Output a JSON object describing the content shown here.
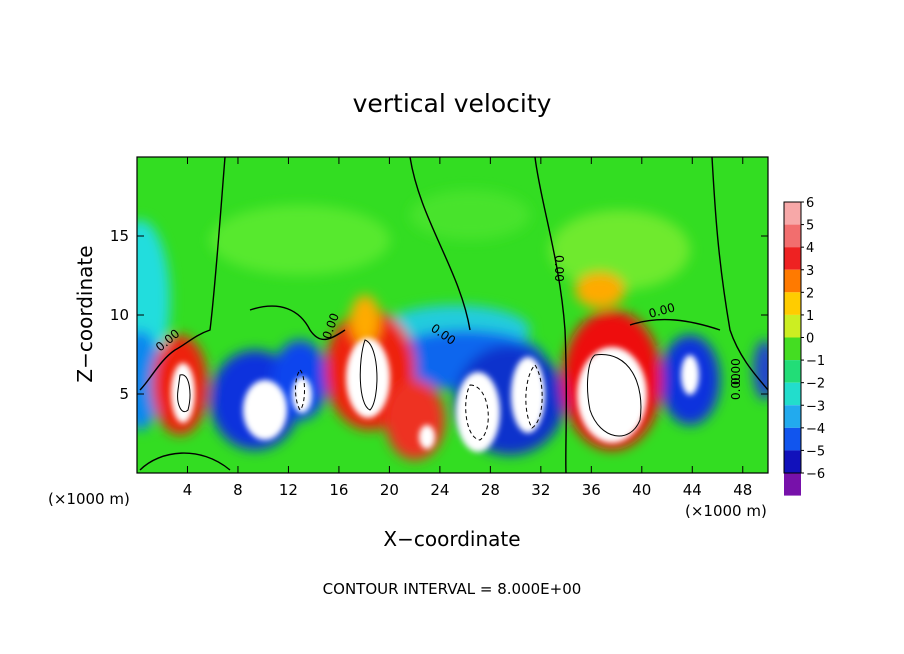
{
  "chart_data": {
    "type": "heatmap",
    "title": "vertical velocity",
    "xlabel": "X−coordinate",
    "ylabel": "Z−coordinate",
    "x_unit_left": "(×1000 m)",
    "x_unit_right": "(×1000 m)",
    "footer": "CONTOUR INTERVAL = 8.000E+00",
    "xlim": [
      0,
      50
    ],
    "ylim": [
      0,
      20
    ],
    "x_ticks": [
      4,
      8,
      12,
      16,
      20,
      24,
      28,
      32,
      36,
      40,
      44,
      48
    ],
    "y_ticks": [
      5,
      10,
      15
    ],
    "x_tick_labels": [
      "4",
      "8",
      "12",
      "16",
      "20",
      "24",
      "28",
      "32",
      "36",
      "40",
      "44",
      "48"
    ],
    "y_tick_labels": [
      "5",
      "10",
      "15"
    ],
    "colorbar": {
      "range": [
        -6,
        6
      ],
      "tick_labels": [
        "6",
        "5",
        "4",
        "3",
        "2",
        "1",
        "0",
        "−1",
        "−2",
        "−3",
        "−4",
        "−5",
        "−6"
      ]
    },
    "contour_labels": [
      "0.00",
      "0.00",
      "0.00",
      "0.00",
      "0.00",
      "0.00",
      "0.00"
    ],
    "cells": [
      {
        "x": 4.0,
        "z": 5.5,
        "w": 6,
        "sign": "up"
      },
      {
        "x": 10.0,
        "z": 5.0,
        "w": -6,
        "sign": "down"
      },
      {
        "x": 12.5,
        "z": 5.5,
        "w": -6,
        "sign": "down"
      },
      {
        "x": 18.5,
        "z": 6.5,
        "w": 6,
        "sign": "up"
      },
      {
        "x": 23.0,
        "z": 2.5,
        "w": 6,
        "sign": "up"
      },
      {
        "x": 27.0,
        "z": 4.0,
        "w": -6,
        "sign": "down"
      },
      {
        "x": 31.0,
        "z": 5.0,
        "w": -6,
        "sign": "down"
      },
      {
        "x": 37.5,
        "z": 5.8,
        "w": 6,
        "sign": "up"
      },
      {
        "x": 44.0,
        "z": 6.0,
        "w": -6,
        "sign": "down"
      }
    ]
  }
}
